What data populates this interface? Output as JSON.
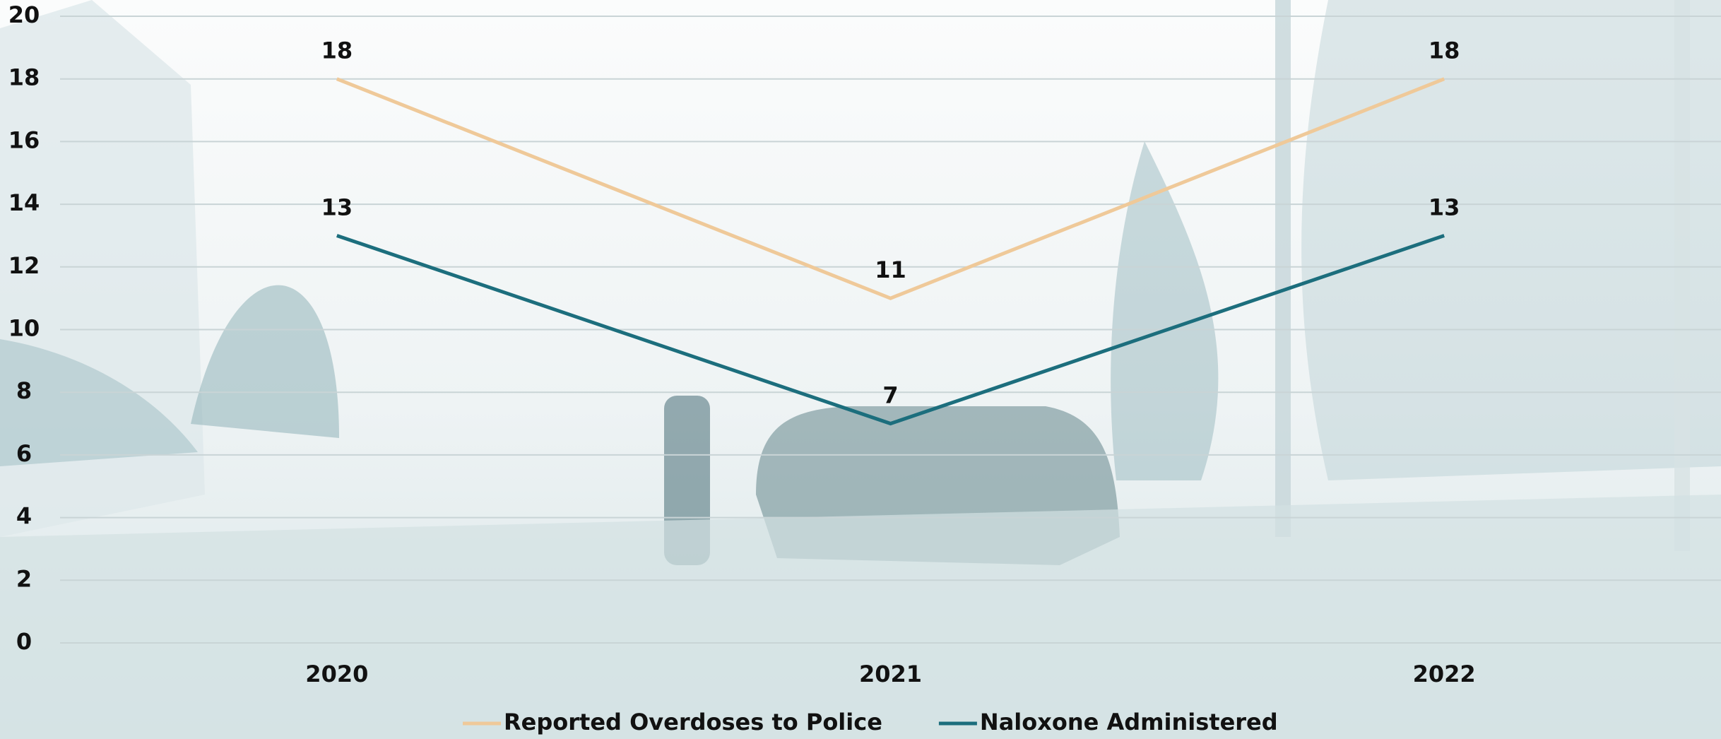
{
  "chart_data": {
    "type": "line",
    "categories": [
      "2020",
      "2021",
      "2022"
    ],
    "series": [
      {
        "name": "Reported Overdoses to Police",
        "color": "#efc999",
        "values": [
          18,
          11,
          18
        ]
      },
      {
        "name": "Naloxone Administered",
        "color": "#1c6e7d",
        "values": [
          13,
          7,
          13
        ]
      }
    ],
    "ylim": [
      0,
      20
    ],
    "yticks": [
      0,
      2,
      4,
      6,
      8,
      10,
      12,
      14,
      16,
      18,
      20
    ],
    "grid": true,
    "legend": "bottom"
  }
}
